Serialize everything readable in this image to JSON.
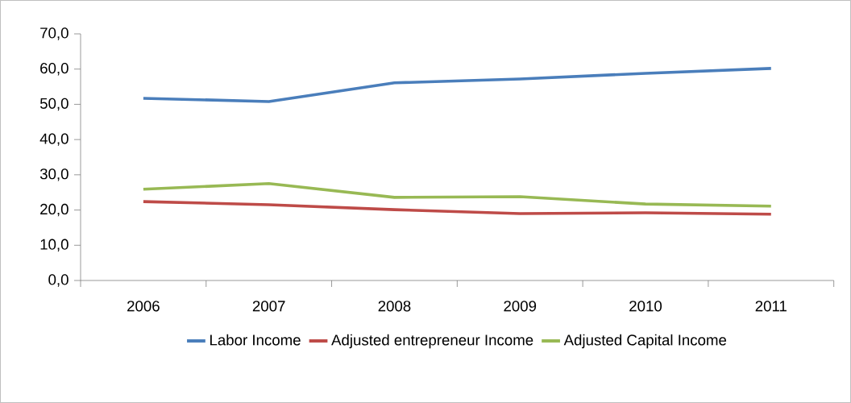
{
  "chart_data": {
    "type": "line",
    "categories": [
      "2006",
      "2007",
      "2008",
      "2009",
      "2010",
      "2011"
    ],
    "series": [
      {
        "name": "Labor Income",
        "color": "#4a7ebb",
        "values": [
          51.7,
          50.8,
          56.1,
          57.2,
          58.8,
          60.2
        ]
      },
      {
        "name": "Adjusted entrepreneur Income",
        "color": "#be4b48",
        "values": [
          22.4,
          21.5,
          20.1,
          19.0,
          19.2,
          18.8
        ]
      },
      {
        "name": "Adjusted Capital Income",
        "color": "#98b954",
        "values": [
          25.9,
          27.5,
          23.6,
          23.8,
          21.7,
          21.1
        ]
      }
    ],
    "ylim": [
      0,
      70
    ],
    "yticks": [
      {
        "value": 0,
        "label": "0,0"
      },
      {
        "value": 10,
        "label": "10,0"
      },
      {
        "value": 20,
        "label": "20,0"
      },
      {
        "value": 30,
        "label": "30,0"
      },
      {
        "value": 40,
        "label": "40,0"
      },
      {
        "value": 50,
        "label": "50,0"
      },
      {
        "value": 60,
        "label": "60,0"
      },
      {
        "value": 70,
        "label": "70,0"
      }
    ],
    "grid": false,
    "legend": "bottom"
  }
}
